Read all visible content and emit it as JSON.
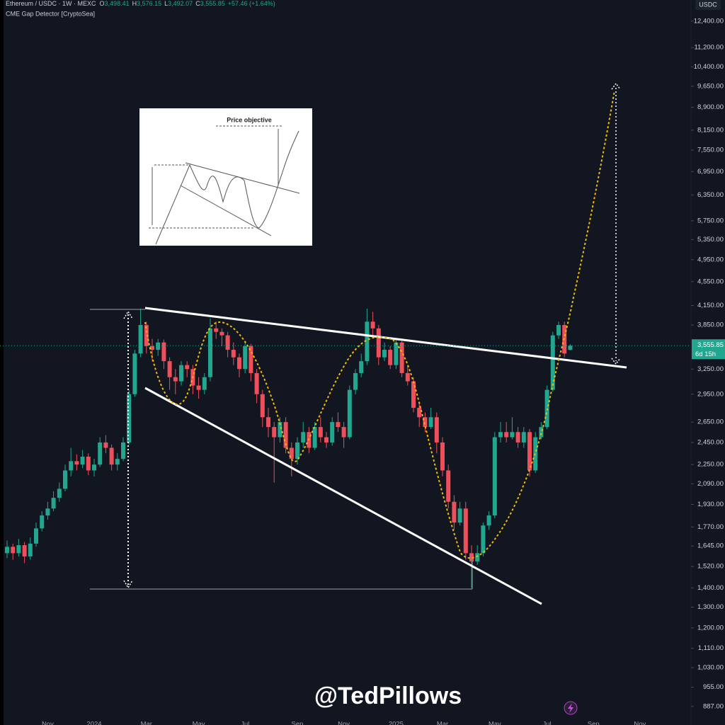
{
  "chart_data": {
    "type": "candlestick",
    "legend_line": {
      "symbol": "Ethereum / USDC · 1W · MEXC",
      "ohlc": [
        {
          "label": "O",
          "value": "3,498.41"
        },
        {
          "label": "H",
          "value": "3,576.15"
        },
        {
          "label": "L",
          "value": "3,492.07"
        },
        {
          "label": "C",
          "value": "3,555.85"
        }
      ],
      "change": "+57.46 (+1.64%)"
    },
    "indicator": "CME Gap Detector [CryptoSea]",
    "currency": "USDC",
    "watermark": "@TedPillows",
    "inset_label": "Price objective",
    "up_color": "#22a68f",
    "down_color": "#ef4f5a",
    "log_scale": true,
    "ylim": [
      858,
      13450
    ],
    "yticks": [
      {
        "value": 12400,
        "label": "12,400.00"
      },
      {
        "value": 11200,
        "label": "11,200.00"
      },
      {
        "value": 10400,
        "label": "10,400.00"
      },
      {
        "value": 9650,
        "label": "9,650.00"
      },
      {
        "value": 8900,
        "label": "8,900.00"
      },
      {
        "value": 8150,
        "label": "8,150.00"
      },
      {
        "value": 7550,
        "label": "7,550.00"
      },
      {
        "value": 6950,
        "label": "6,950.00"
      },
      {
        "value": 6350,
        "label": "6,350.00"
      },
      {
        "value": 5750,
        "label": "5,750.00"
      },
      {
        "value": 5350,
        "label": "5,350.00"
      },
      {
        "value": 4950,
        "label": "4,950.00"
      },
      {
        "value": 4550,
        "label": "4,550.00"
      },
      {
        "value": 4150,
        "label": "4,150.00"
      },
      {
        "value": 3850,
        "label": "3,850.00"
      },
      {
        "value": 3250,
        "label": "3,250.00"
      },
      {
        "value": 2950,
        "label": "2,950.00"
      },
      {
        "value": 2650,
        "label": "2,650.00"
      },
      {
        "value": 2450,
        "label": "2,450.00"
      },
      {
        "value": 2250,
        "label": "2,250.00"
      },
      {
        "value": 2090,
        "label": "2,090.00"
      },
      {
        "value": 1930,
        "label": "1,930.00"
      },
      {
        "value": 1770,
        "label": "1,770.00"
      },
      {
        "value": 1645,
        "label": "1,645.00"
      },
      {
        "value": 1520,
        "label": "1,520.00"
      },
      {
        "value": 1400,
        "label": "1,400.00"
      },
      {
        "value": 1300,
        "label": "1,300.00"
      },
      {
        "value": 1200,
        "label": "1,200.00"
      },
      {
        "value": 1110,
        "label": "1,110.00"
      },
      {
        "value": 1030,
        "label": "1,030.00"
      },
      {
        "value": 955,
        "label": "955.00"
      },
      {
        "value": 887,
        "label": "887.00"
      }
    ],
    "last_price": {
      "value": 3555.85,
      "label": "3,555.85",
      "countdown": "6d 15h"
    },
    "xtick_labels": [
      {
        "value": 7,
        "label": "Nov"
      },
      {
        "value": 15,
        "label": "2024"
      },
      {
        "value": 24,
        "label": "Mar"
      },
      {
        "value": 33,
        "label": "May"
      },
      {
        "value": 41,
        "label": "Jul"
      },
      {
        "value": 50,
        "label": "Sep"
      },
      {
        "value": 58,
        "label": "Nov"
      },
      {
        "value": 67,
        "label": "2025"
      },
      {
        "value": 75,
        "label": "Mar"
      },
      {
        "value": 84,
        "label": "May"
      },
      {
        "value": 93,
        "label": "Jul"
      },
      {
        "value": 101,
        "label": "Sep"
      },
      {
        "value": 109,
        "label": "Nov"
      }
    ],
    "candles": [
      [
        1600,
        1680,
        1570,
        1640
      ],
      [
        1640,
        1660,
        1560,
        1600
      ],
      [
        1600,
        1690,
        1580,
        1650
      ],
      [
        1650,
        1670,
        1540,
        1580
      ],
      [
        1580,
        1700,
        1560,
        1660
      ],
      [
        1660,
        1800,
        1640,
        1760
      ],
      [
        1760,
        1880,
        1740,
        1850
      ],
      [
        1850,
        1950,
        1820,
        1900
      ],
      [
        1900,
        2030,
        1880,
        1980
      ],
      [
        1980,
        2100,
        1950,
        2050
      ],
      [
        2050,
        2250,
        2030,
        2200
      ],
      [
        2200,
        2400,
        2150,
        2280
      ],
      [
        2280,
        2340,
        2200,
        2250
      ],
      [
        2250,
        2380,
        2220,
        2320
      ],
      [
        2320,
        2350,
        2160,
        2200
      ],
      [
        2200,
        2300,
        2150,
        2250
      ],
      [
        2250,
        2500,
        2230,
        2450
      ],
      [
        2450,
        2520,
        2350,
        2400
      ],
      [
        2400,
        2430,
        2200,
        2250
      ],
      [
        2250,
        2350,
        2200,
        2300
      ],
      [
        2300,
        2500,
        2280,
        2450
      ],
      [
        2450,
        3000,
        2430,
        2950
      ],
      [
        2950,
        3500,
        2920,
        3450
      ],
      [
        3450,
        4100,
        3400,
        3850
      ],
      [
        3850,
        3900,
        3450,
        3550
      ],
      [
        3550,
        3650,
        3350,
        3500
      ],
      [
        3500,
        3650,
        3420,
        3600
      ],
      [
        3600,
        3640,
        3250,
        3350
      ],
      [
        3350,
        3400,
        3000,
        3150
      ],
      [
        3150,
        3250,
        2950,
        3100
      ],
      [
        3100,
        3350,
        3050,
        3300
      ],
      [
        3300,
        3350,
        3150,
        3250
      ],
      [
        3250,
        3300,
        2950,
        3050
      ],
      [
        3050,
        3150,
        2900,
        3000
      ],
      [
        3000,
        3200,
        2950,
        3150
      ],
      [
        3150,
        3950,
        3100,
        3800
      ],
      [
        3800,
        3900,
        3650,
        3750
      ],
      [
        3750,
        3800,
        3550,
        3700
      ],
      [
        3700,
        3750,
        3400,
        3500
      ],
      [
        3500,
        3600,
        3300,
        3400
      ],
      [
        3400,
        3450,
        3150,
        3250
      ],
      [
        3250,
        3600,
        3200,
        3550
      ],
      [
        3550,
        3580,
        3100,
        3200
      ],
      [
        3200,
        3250,
        2850,
        2950
      ],
      [
        2950,
        3000,
        2600,
        2700
      ],
      [
        2700,
        2800,
        2500,
        2600
      ],
      [
        2600,
        2650,
        2100,
        2500
      ],
      [
        2500,
        2700,
        2450,
        2650
      ],
      [
        2650,
        2700,
        2350,
        2400
      ],
      [
        2400,
        2450,
        2150,
        2300
      ],
      [
        2300,
        2500,
        2250,
        2450
      ],
      [
        2450,
        2650,
        2400,
        2550
      ],
      [
        2550,
        2600,
        2350,
        2400
      ],
      [
        2400,
        2650,
        2380,
        2600
      ],
      [
        2600,
        2700,
        2450,
        2500
      ],
      [
        2500,
        2550,
        2400,
        2450
      ],
      [
        2450,
        2700,
        2420,
        2650
      ],
      [
        2650,
        2750,
        2550,
        2600
      ],
      [
        2600,
        2650,
        2400,
        2500
      ],
      [
        2500,
        3050,
        2480,
        3000
      ],
      [
        3000,
        3250,
        2950,
        3200
      ],
      [
        3200,
        3450,
        3150,
        3350
      ],
      [
        3350,
        4100,
        3300,
        3900
      ],
      [
        3900,
        4050,
        3700,
        3800
      ],
      [
        3800,
        3850,
        3300,
        3400
      ],
      [
        3400,
        3600,
        3350,
        3500
      ],
      [
        3500,
        3550,
        3250,
        3300
      ],
      [
        3300,
        3650,
        3250,
        3600
      ],
      [
        3600,
        3620,
        3150,
        3200
      ],
      [
        3200,
        3300,
        3050,
        3100
      ],
      [
        3100,
        3150,
        2750,
        2800
      ],
      [
        2800,
        2850,
        2600,
        2700
      ],
      [
        2700,
        2750,
        2550,
        2600
      ],
      [
        2600,
        2800,
        2580,
        2700
      ],
      [
        2700,
        2750,
        2350,
        2450
      ],
      [
        2450,
        2500,
        2150,
        2200
      ],
      [
        2200,
        2250,
        1900,
        1950
      ],
      [
        1950,
        2000,
        1750,
        1800
      ],
      [
        1800,
        1950,
        1780,
        1900
      ],
      [
        1900,
        1950,
        1560,
        1600
      ],
      [
        1600,
        1650,
        1400,
        1550
      ],
      [
        1550,
        1650,
        1530,
        1600
      ],
      [
        1600,
        1800,
        1580,
        1780
      ],
      [
        1780,
        1880,
        1750,
        1850
      ],
      [
        1850,
        2550,
        1830,
        2500
      ],
      [
        2500,
        2650,
        2450,
        2550
      ],
      [
        2550,
        2650,
        2450,
        2500
      ],
      [
        2500,
        2700,
        2480,
        2550
      ],
      [
        2550,
        2600,
        2400,
        2450
      ],
      [
        2450,
        2600,
        2400,
        2550
      ],
      [
        2550,
        2580,
        2150,
        2200
      ],
      [
        2200,
        2550,
        2180,
        2500
      ],
      [
        2500,
        2650,
        2480,
        2600
      ],
      [
        2600,
        3050,
        2580,
        3000
      ],
      [
        3000,
        3750,
        2980,
        3700
      ],
      [
        3700,
        3900,
        3650,
        3850
      ],
      [
        3850,
        3900,
        3400,
        3450
      ],
      [
        3498.41,
        3576.15,
        3492.07,
        3555.85
      ]
    ]
  }
}
